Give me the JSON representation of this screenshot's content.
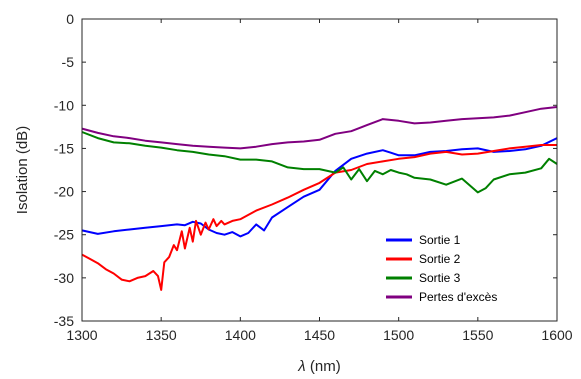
{
  "chart_data": {
    "type": "line",
    "xlabel_symbol": "λ",
    "xlabel_unit": " (nm)",
    "ylabel": "Isolation (dB)",
    "xlim": [
      1300,
      1600
    ],
    "ylim": [
      -35,
      0
    ],
    "xticks": [
      1300,
      1350,
      1400,
      1450,
      1500,
      1550,
      1600
    ],
    "yticks": [
      0,
      -5,
      -10,
      -15,
      -20,
      -25,
      -30,
      -35
    ],
    "grid": false,
    "legend_position": "lower-right",
    "series": [
      {
        "name": "Sortie 1",
        "color": "#0000ff",
        "x": [
          1300,
          1310,
          1320,
          1330,
          1340,
          1350,
          1360,
          1365,
          1370,
          1375,
          1380,
          1385,
          1390,
          1395,
          1400,
          1405,
          1410,
          1415,
          1420,
          1430,
          1440,
          1450,
          1460,
          1470,
          1480,
          1490,
          1495,
          1500,
          1510,
          1520,
          1530,
          1540,
          1550,
          1560,
          1570,
          1580,
          1590,
          1600
        ],
        "y": [
          -24.5,
          -24.9,
          -24.6,
          -24.4,
          -24.2,
          -24.0,
          -23.8,
          -23.9,
          -23.5,
          -23.7,
          -24.4,
          -24.8,
          -25.0,
          -24.7,
          -25.2,
          -24.8,
          -23.8,
          -24.5,
          -23.0,
          -21.8,
          -20.6,
          -19.8,
          -17.6,
          -16.2,
          -15.6,
          -15.2,
          -15.5,
          -15.8,
          -15.8,
          -15.4,
          -15.3,
          -15.1,
          -15.0,
          -15.4,
          -15.3,
          -15.1,
          -14.7,
          -13.8
        ]
      },
      {
        "name": "Sortie 2",
        "color": "#ff0000",
        "x": [
          1300,
          1305,
          1310,
          1315,
          1320,
          1325,
          1330,
          1335,
          1340,
          1345,
          1348,
          1350,
          1352,
          1355,
          1358,
          1360,
          1363,
          1365,
          1368,
          1370,
          1372,
          1375,
          1378,
          1380,
          1383,
          1385,
          1388,
          1390,
          1395,
          1400,
          1410,
          1420,
          1430,
          1440,
          1450,
          1460,
          1470,
          1480,
          1490,
          1500,
          1510,
          1520,
          1530,
          1540,
          1550,
          1560,
          1570,
          1580,
          1590,
          1600
        ],
        "y": [
          -27.3,
          -27.8,
          -28.3,
          -29.0,
          -29.5,
          -30.2,
          -30.4,
          -30.0,
          -29.8,
          -29.2,
          -29.8,
          -31.4,
          -28.2,
          -27.6,
          -26.2,
          -26.8,
          -24.6,
          -26.6,
          -24.2,
          -25.8,
          -23.4,
          -25.0,
          -23.6,
          -24.4,
          -23.2,
          -24.0,
          -23.4,
          -23.8,
          -23.4,
          -23.2,
          -22.2,
          -21.5,
          -20.7,
          -19.8,
          -19.0,
          -17.8,
          -17.5,
          -16.8,
          -16.5,
          -16.2,
          -16.0,
          -15.6,
          -15.4,
          -15.7,
          -15.6,
          -15.3,
          -15.0,
          -14.8,
          -14.6,
          -14.6
        ]
      },
      {
        "name": "Sortie 3",
        "color": "#008000",
        "x": [
          1300,
          1310,
          1320,
          1330,
          1340,
          1350,
          1360,
          1370,
          1380,
          1390,
          1400,
          1410,
          1420,
          1430,
          1440,
          1450,
          1460,
          1465,
          1470,
          1475,
          1480,
          1485,
          1490,
          1495,
          1500,
          1505,
          1510,
          1520,
          1530,
          1540,
          1550,
          1555,
          1560,
          1570,
          1580,
          1590,
          1595,
          1600
        ],
        "y": [
          -13.1,
          -13.8,
          -14.3,
          -14.4,
          -14.7,
          -14.9,
          -15.2,
          -15.4,
          -15.7,
          -15.9,
          -16.3,
          -16.3,
          -16.5,
          -17.2,
          -17.4,
          -17.4,
          -17.8,
          -17.2,
          -18.6,
          -17.4,
          -18.8,
          -17.6,
          -18.0,
          -17.5,
          -17.8,
          -18.0,
          -18.4,
          -18.6,
          -19.2,
          -18.5,
          -20.1,
          -19.6,
          -18.6,
          -18.0,
          -17.8,
          -17.3,
          -16.2,
          -16.8
        ]
      },
      {
        "name": "Pertes d'excès",
        "color": "#800080",
        "x": [
          1300,
          1310,
          1320,
          1330,
          1340,
          1350,
          1360,
          1370,
          1380,
          1390,
          1400,
          1410,
          1420,
          1430,
          1440,
          1450,
          1460,
          1470,
          1480,
          1490,
          1500,
          1510,
          1520,
          1530,
          1540,
          1550,
          1560,
          1570,
          1580,
          1590,
          1600
        ],
        "y": [
          -12.7,
          -13.2,
          -13.6,
          -13.8,
          -14.1,
          -14.3,
          -14.5,
          -14.7,
          -14.8,
          -14.9,
          -15.0,
          -14.8,
          -14.5,
          -14.3,
          -14.2,
          -14.0,
          -13.3,
          -13.0,
          -12.3,
          -11.6,
          -11.8,
          -12.1,
          -12.0,
          -11.8,
          -11.6,
          -11.5,
          -11.4,
          -11.2,
          -10.8,
          -10.4,
          -10.2
        ]
      }
    ]
  }
}
